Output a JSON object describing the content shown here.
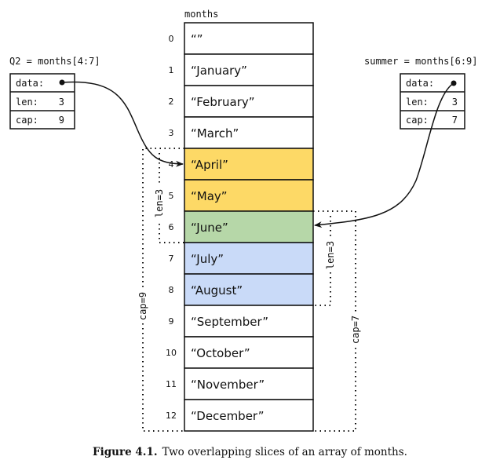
{
  "array": {
    "label": "months",
    "cells": [
      {
        "index": "0",
        "value": "“”",
        "color": "#ffffff"
      },
      {
        "index": "1",
        "value": "“January”",
        "color": "#ffffff"
      },
      {
        "index": "2",
        "value": "“February”",
        "color": "#ffffff"
      },
      {
        "index": "3",
        "value": "“March”",
        "color": "#ffffff"
      },
      {
        "index": "4",
        "value": "“April”",
        "color": "#fdd966"
      },
      {
        "index": "5",
        "value": "“May”",
        "color": "#fdd966"
      },
      {
        "index": "6",
        "value": "“June”",
        "color": "#b6d7a8"
      },
      {
        "index": "7",
        "value": "“July”",
        "color": "#c9daf8"
      },
      {
        "index": "8",
        "value": "“August”",
        "color": "#c9daf8"
      },
      {
        "index": "9",
        "value": "“September”",
        "color": "#ffffff"
      },
      {
        "index": "10",
        "value": "“October”",
        "color": "#ffffff"
      },
      {
        "index": "11",
        "value": "“November”",
        "color": "#ffffff"
      },
      {
        "index": "12",
        "value": "“December”",
        "color": "#ffffff"
      }
    ]
  },
  "slices": {
    "q2": {
      "title": "Q2 = months[4:7]",
      "data_label": "data:",
      "len_label": "len:",
      "len": "3",
      "cap_label": "cap:",
      "cap": "9",
      "len_annot": "len=3",
      "cap_annot": "cap=9"
    },
    "summer": {
      "title": "summer = months[6:9]",
      "data_label": "data:",
      "len_label": "len:",
      "len": "3",
      "cap_label": "cap:",
      "cap": "7",
      "len_annot": "len=3",
      "cap_annot": "cap=7"
    }
  },
  "caption": {
    "label": "Figure 4.1.",
    "text": "Two overlapping slices of an array of months."
  }
}
